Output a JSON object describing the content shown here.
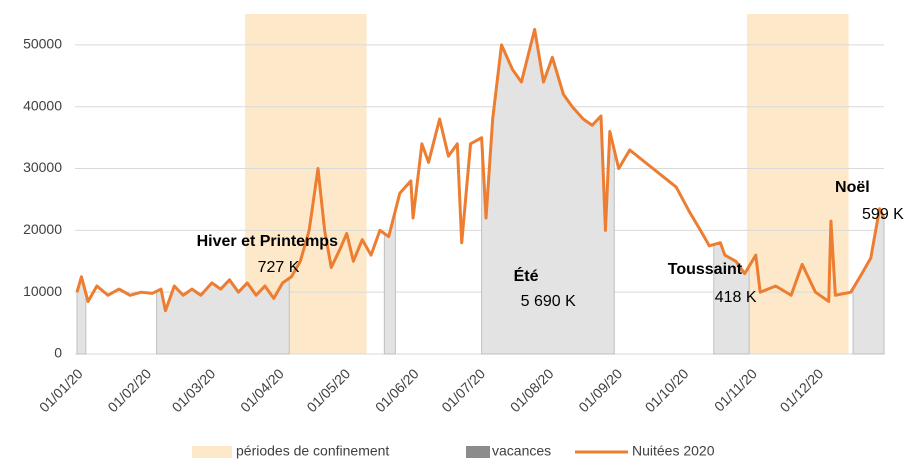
{
  "chart_data": {
    "type": "line",
    "xlim": [
      "01/01/20",
      "31/12/20"
    ],
    "xticks": [
      "01/01/20",
      "01/02/20",
      "01/03/20",
      "01/04/20",
      "01/05/20",
      "01/06/20",
      "01/07/20",
      "01/08/20",
      "01/09/20",
      "01/10/20",
      "01/11/20",
      "01/12/20"
    ],
    "ylim": [
      0,
      55000
    ],
    "yticks": [
      0,
      10000,
      20000,
      30000,
      40000,
      50000
    ],
    "grid": true,
    "legend": "bottom",
    "confinement": {
      "name": "périodes de confinement",
      "color": "#fde9c9",
      "periods": [
        {
          "start": "17/03/20",
          "end": "11/05/20"
        },
        {
          "start": "30/10/20",
          "end": "15/12/20"
        }
      ]
    },
    "vacances": {
      "name": "vacances",
      "color": "#e3e3e3",
      "periods": [
        {
          "start": "01/01/20",
          "end": "05/01/20"
        },
        {
          "start": "06/02/20",
          "end": "06/04/20",
          "label": "Hiver et Printemps",
          "total": "727 K"
        },
        {
          "start": "19/05/20",
          "end": "24/05/20"
        },
        {
          "start": "02/07/20",
          "end": "31/08/20",
          "label": "Été",
          "total": "5 690 K"
        },
        {
          "start": "15/10/20",
          "end": "31/10/20",
          "label": "Toussaint",
          "total": "418 K"
        },
        {
          "start": "17/12/20",
          "end": "31/12/20",
          "label": "Noël",
          "total": "599 K"
        }
      ]
    },
    "x": [
      "01/01/20",
      "03/01/20",
      "06/01/20",
      "10/01/20",
      "15/01/20",
      "20/01/20",
      "25/01/20",
      "30/01/20",
      "04/02/20",
      "08/02/20",
      "10/02/20",
      "14/02/20",
      "18/02/20",
      "22/02/20",
      "26/02/20",
      "02/03/20",
      "06/03/20",
      "10/03/20",
      "14/03/20",
      "18/03/20",
      "22/03/20",
      "26/03/20",
      "30/03/20",
      "03/04/20",
      "07/04/20",
      "11/04/20",
      "15/04/20",
      "19/04/20",
      "22/04/20",
      "25/04/20",
      "29/04/20",
      "02/05/20",
      "05/05/20",
      "09/05/20",
      "13/05/20",
      "17/05/20",
      "21/05/20",
      "26/05/20",
      "31/05/20",
      "01/06/20",
      "05/06/20",
      "08/06/20",
      "13/06/20",
      "17/06/20",
      "21/06/20",
      "23/06/20",
      "27/06/20",
      "02/07/20",
      "04/07/20",
      "07/07/20",
      "11/07/20",
      "16/07/20",
      "20/07/20",
      "26/07/20",
      "30/07/20",
      "03/08/20",
      "08/08/20",
      "12/08/20",
      "17/08/20",
      "21/08/20",
      "25/08/20",
      "27/08/20",
      "29/08/20",
      "02/09/20",
      "07/09/20",
      "14/09/20",
      "21/09/20",
      "28/09/20",
      "04/10/20",
      "09/10/20",
      "13/10/20",
      "18/10/20",
      "20/10/20",
      "25/10/20",
      "29/10/20",
      "03/11/20",
      "05/11/20",
      "12/11/20",
      "19/11/20",
      "24/11/20",
      "30/11/20",
      "06/12/20",
      "07/12/20",
      "09/12/20",
      "16/12/20",
      "21/12/20",
      "25/12/20",
      "29/12/20",
      "31/12/20"
    ],
    "series": [
      {
        "name": "Nuitées 2020",
        "color": "#ed7d31",
        "values": [
          10000,
          12500,
          8500,
          11000,
          9500,
          10500,
          9500,
          10000,
          9800,
          10500,
          7000,
          11000,
          9500,
          10500,
          9500,
          11500,
          10500,
          12000,
          10000,
          11500,
          9500,
          11000,
          9000,
          11500,
          12500,
          15000,
          20000,
          30000,
          20000,
          14000,
          17000,
          19500,
          15000,
          18500,
          16000,
          20000,
          19000,
          26000,
          28000,
          22000,
          34000,
          31000,
          38000,
          32000,
          34000,
          18000,
          34000,
          35000,
          22000,
          38000,
          50000,
          46000,
          44000,
          52500,
          44000,
          48000,
          42000,
          40000,
          38000,
          37000,
          38500,
          20000,
          36000,
          30000,
          33000,
          31000,
          29000,
          27000,
          23000,
          20000,
          17500,
          18000,
          16000,
          15000,
          13000,
          16000,
          10000,
          11000,
          9500,
          14500,
          10000,
          8500,
          21500,
          9500,
          10000,
          13000,
          15500,
          23500,
          22000
        ]
      }
    ]
  }
}
